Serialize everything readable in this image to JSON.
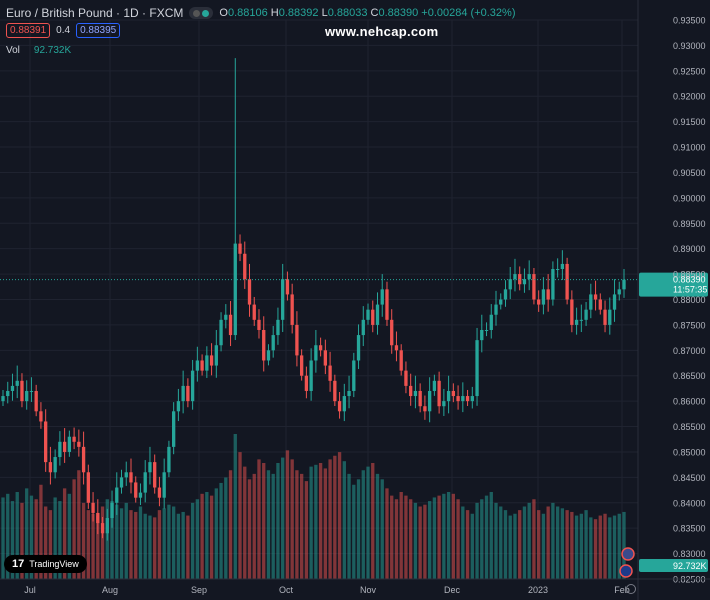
{
  "header": {
    "symbol_title": "Euro / British Pound · 1D · FXCM",
    "ohlc": {
      "o_label": "O",
      "o": "0.88106",
      "h_label": "H",
      "h": "0.88392",
      "l_label": "L",
      "l": "0.88033",
      "c_label": "C",
      "c": "0.88390",
      "change": "+0.00284 (+0.32%)"
    },
    "sell_price": "0.88391",
    "spread": "0.4",
    "buy_price": "0.88395",
    "volume_label": "Vol",
    "volume_value": "92.732K"
  },
  "watermark": "www.nehcap.com",
  "logo": {
    "text": "TradingView",
    "mark": "17"
  },
  "price_scale": {
    "ticks": [
      "0.93500",
      "0.93000",
      "0.92500",
      "0.92000",
      "0.91500",
      "0.91000",
      "0.90500",
      "0.90000",
      "0.89500",
      "0.89000",
      "0.88500",
      "0.88000",
      "0.87500",
      "0.87000",
      "0.86500",
      "0.86000",
      "0.85500",
      "0.85000",
      "0.84500",
      "0.84000",
      "0.83500",
      "0.83000",
      "0.82500"
    ],
    "last_price": "0.88390",
    "countdown": "11:57:35",
    "volume_tag": "92.732K"
  },
  "time_axis": [
    "Jul",
    "Aug",
    "Sep",
    "Oct",
    "Nov",
    "Dec",
    "2023",
    "Feb"
  ],
  "colors": {
    "up": "#26a69a",
    "down": "#ef5350",
    "background": "#131722",
    "grid": "#1f2330"
  },
  "chart_data": {
    "type": "candlestick",
    "x_axis_labels": [
      "Jul",
      "Aug",
      "Sep",
      "Oct",
      "Nov",
      "Dec",
      "2023",
      "Feb"
    ],
    "y_range": [
      0.825,
      0.935
    ],
    "last_close": 0.8839,
    "closes": [
      0.861,
      0.862,
      0.863,
      0.864,
      0.86,
      0.862,
      0.862,
      0.858,
      0.856,
      0.848,
      0.846,
      0.849,
      0.852,
      0.85,
      0.853,
      0.852,
      0.851,
      0.846,
      0.84,
      0.838,
      0.836,
      0.834,
      0.837,
      0.84,
      0.843,
      0.845,
      0.846,
      0.844,
      0.841,
      0.842,
      0.846,
      0.848,
      0.843,
      0.841,
      0.846,
      0.851,
      0.858,
      0.86,
      0.863,
      0.86,
      0.866,
      0.868,
      0.866,
      0.869,
      0.867,
      0.871,
      0.876,
      0.877,
      0.873,
      0.891,
      0.889,
      0.884,
      0.879,
      0.876,
      0.874,
      0.868,
      0.87,
      0.873,
      0.876,
      0.884,
      0.881,
      0.875,
      0.869,
      0.865,
      0.862,
      0.868,
      0.871,
      0.87,
      0.867,
      0.864,
      0.86,
      0.858,
      0.861,
      0.862,
      0.868,
      0.873,
      0.876,
      0.878,
      0.875,
      0.879,
      0.882,
      0.876,
      0.871,
      0.87,
      0.866,
      0.863,
      0.861,
      0.862,
      0.859,
      0.858,
      0.862,
      0.864,
      0.859,
      0.86,
      0.862,
      0.861,
      0.86,
      0.861,
      0.86,
      0.861,
      0.872,
      0.874,
      0.874,
      0.877,
      0.879,
      0.88,
      0.882,
      0.884,
      0.885,
      0.883,
      0.884,
      0.885,
      0.88,
      0.879,
      0.882,
      0.88,
      0.886,
      0.886,
      0.887,
      0.88,
      0.875,
      0.876,
      0.876,
      0.878,
      0.881,
      0.88,
      0.878,
      0.875,
      0.878,
      0.881,
      0.882,
      0.8839
    ],
    "volumes": [
      45,
      47,
      43,
      48,
      42,
      50,
      46,
      44,
      52,
      40,
      38,
      45,
      43,
      50,
      47,
      55,
      60,
      42,
      38,
      36,
      35,
      40,
      44,
      43,
      41,
      39,
      42,
      38,
      37,
      40,
      36,
      35,
      34,
      38,
      39,
      41,
      40,
      36,
      37,
      35,
      42,
      44,
      47,
      48,
      46,
      50,
      53,
      56,
      60,
      80,
      70,
      62,
      55,
      58,
      66,
      64,
      60,
      58,
      64,
      67,
      71,
      66,
      60,
      58,
      54,
      62,
      63,
      64,
      61,
      66,
      68,
      70,
      65,
      58,
      52,
      55,
      60,
      62,
      64,
      58,
      55,
      50,
      46,
      44,
      48,
      46,
      44,
      42,
      40,
      41,
      43,
      45,
      46,
      47,
      48,
      47,
      44,
      40,
      38,
      36,
      42,
      44,
      46,
      48,
      42,
      40,
      38,
      35,
      36,
      38,
      40,
      42,
      44,
      38,
      36,
      40,
      42,
      40,
      39,
      38,
      37,
      35,
      36,
      38,
      34,
      33,
      35,
      36,
      34,
      35,
      36,
      37
    ]
  }
}
